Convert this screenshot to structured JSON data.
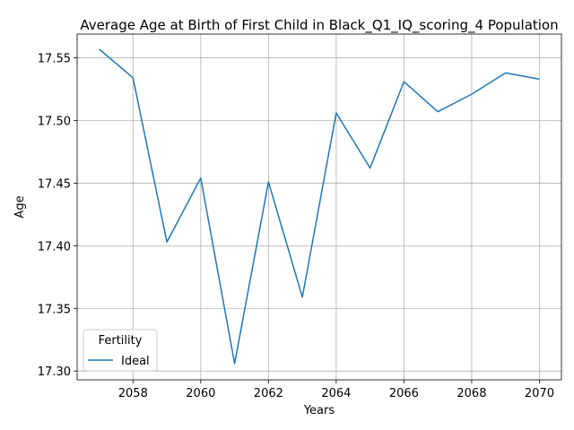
{
  "chart_data": {
    "type": "line",
    "title": "Average Age at Birth of First Child in Black_Q1_IQ_scoring_4 Population",
    "xlabel": "Years",
    "ylabel": "Age",
    "x": [
      2057,
      2058,
      2059,
      2060,
      2061,
      2062,
      2063,
      2064,
      2065,
      2066,
      2067,
      2068,
      2069,
      2070
    ],
    "series": [
      {
        "name": "Ideal",
        "color": "#1f77b4",
        "values": [
          17.557,
          17.534,
          17.403,
          17.454,
          17.306,
          17.451,
          17.359,
          17.506,
          17.462,
          17.531,
          17.507,
          17.521,
          17.538,
          17.533
        ]
      }
    ],
    "xlim": [
      2056.35,
      2070.65
    ],
    "ylim": [
      17.293,
      17.569
    ],
    "x_ticks": [
      2058,
      2060,
      2062,
      2064,
      2066,
      2068,
      2070
    ],
    "x_tick_labels": [
      "2058",
      "2060",
      "2062",
      "2064",
      "2066",
      "2068",
      "2070"
    ],
    "y_ticks": [
      17.3,
      17.35,
      17.4,
      17.45,
      17.5,
      17.55
    ],
    "y_tick_labels": [
      "17.30",
      "17.35",
      "17.40",
      "17.45",
      "17.50",
      "17.55"
    ],
    "grid": true,
    "legend": {
      "title": "Fertility",
      "placement": "lower-left"
    }
  }
}
